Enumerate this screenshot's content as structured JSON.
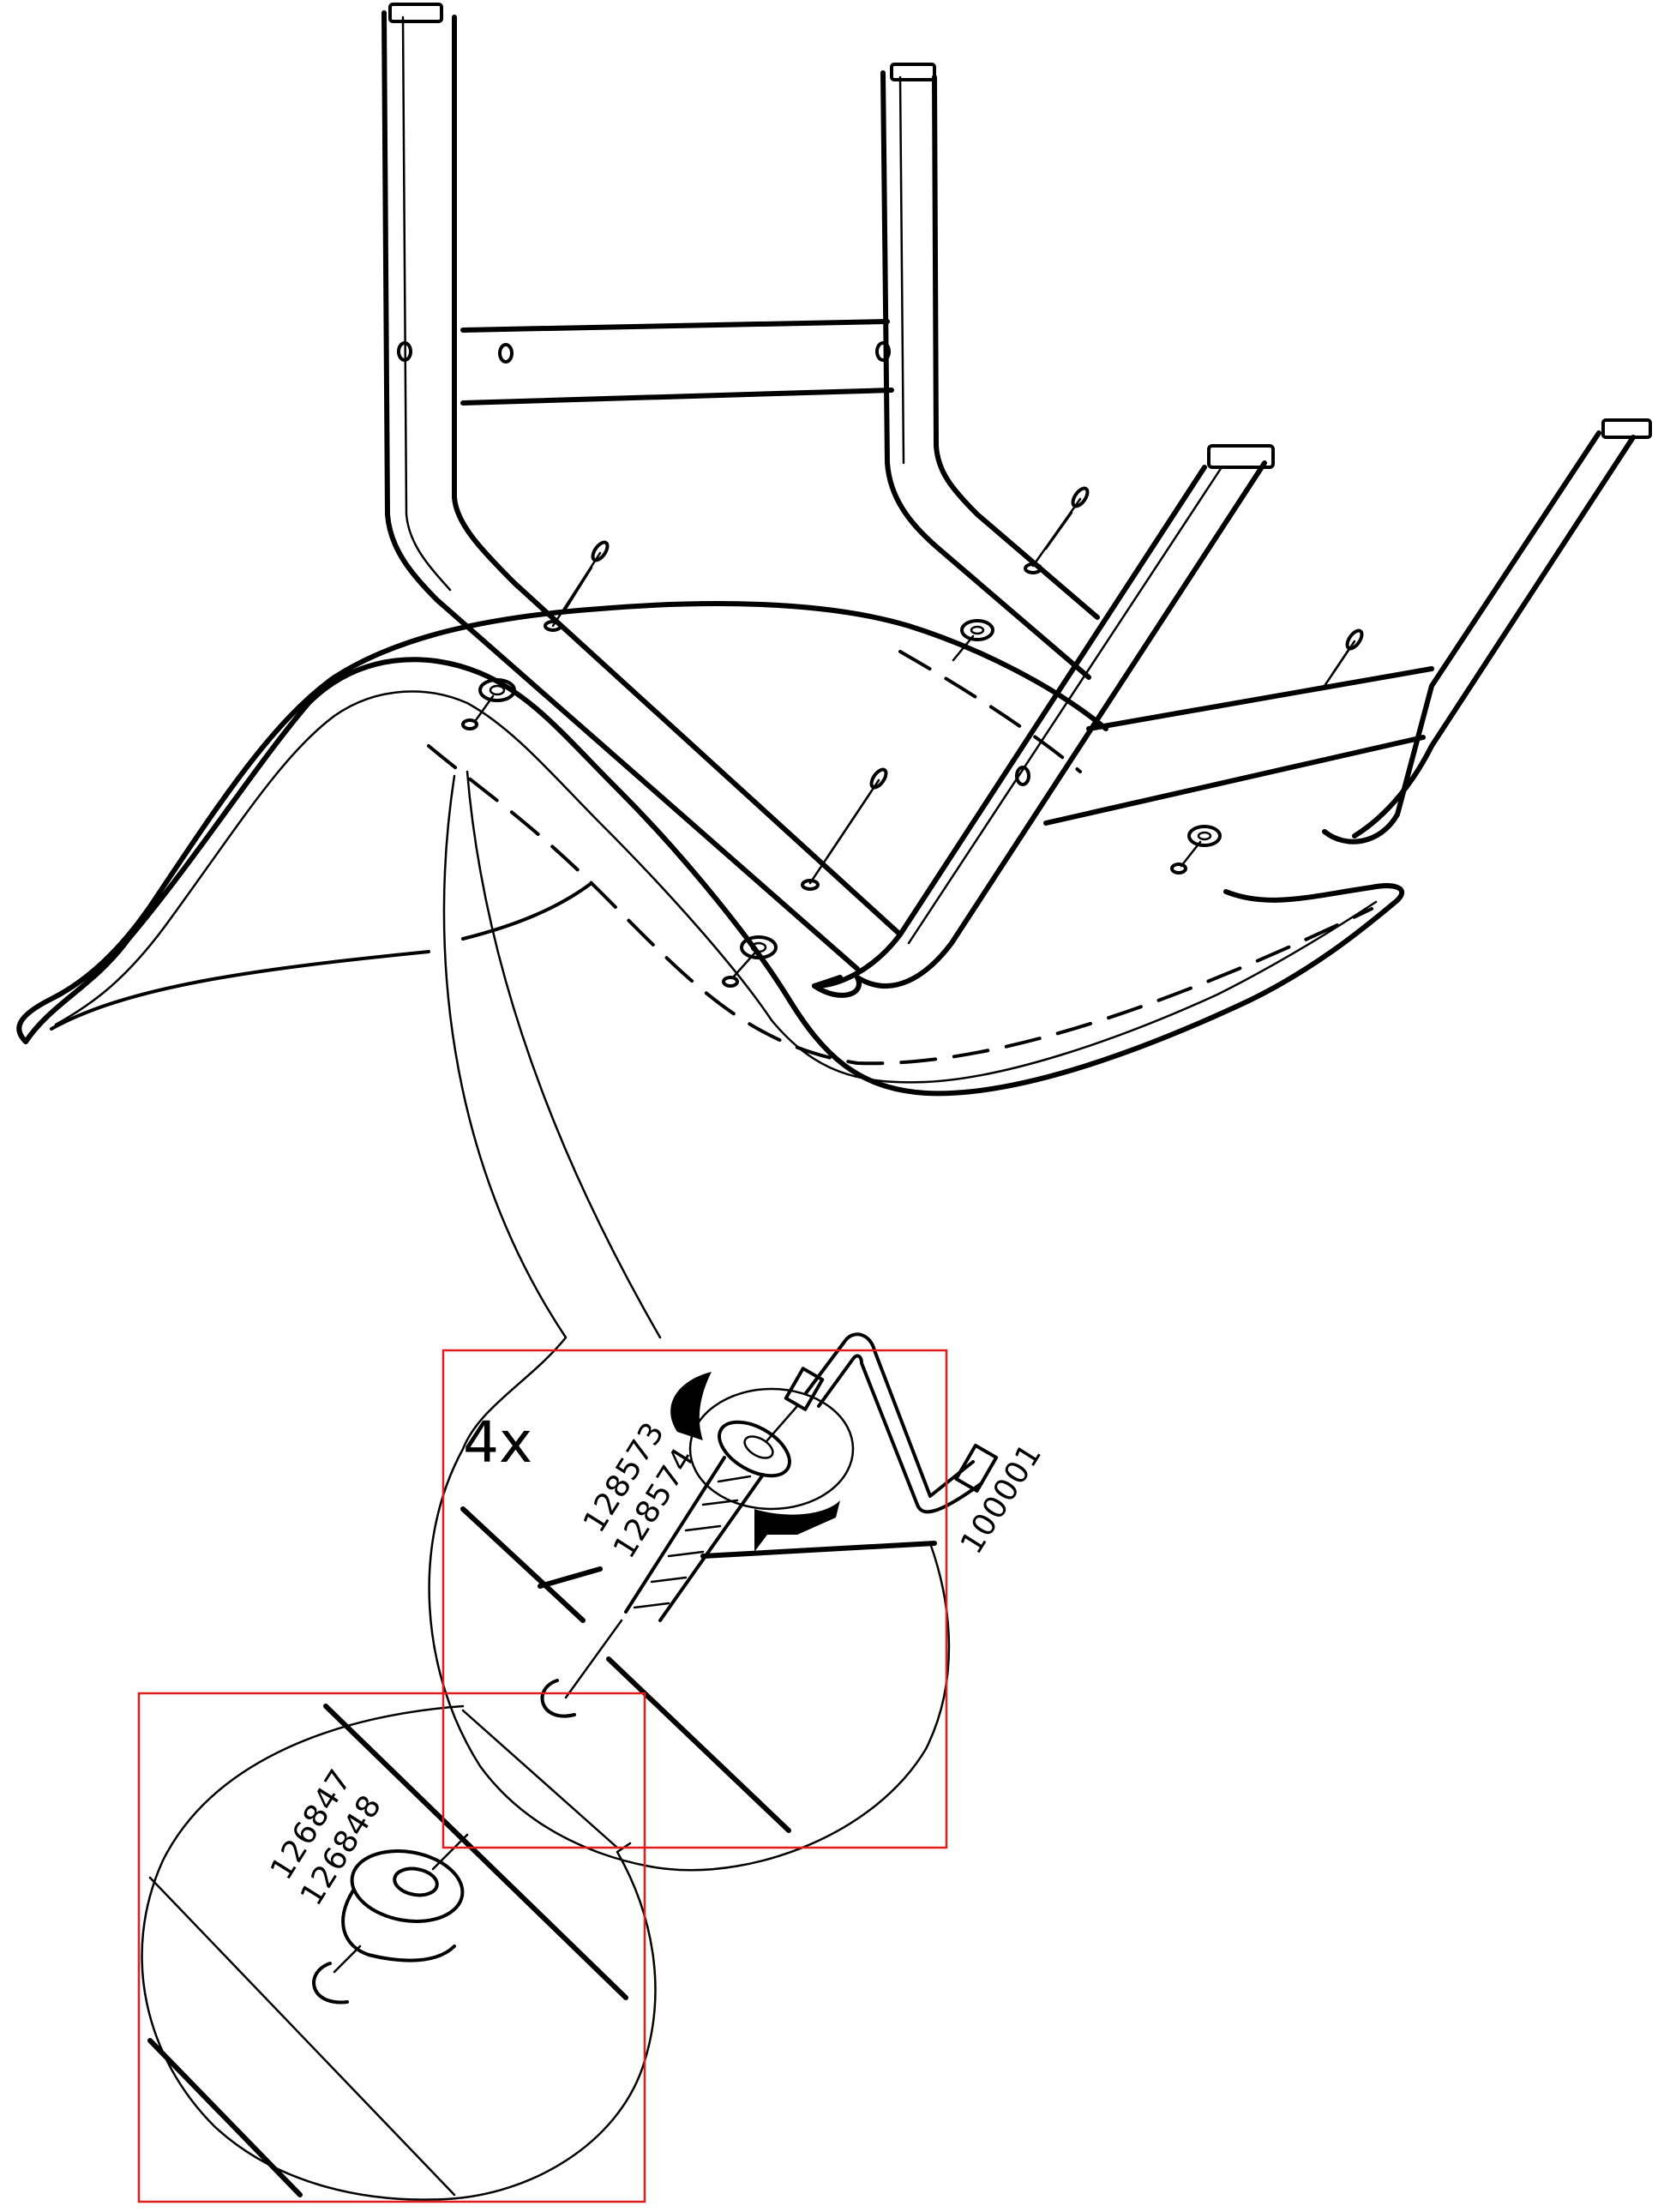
{
  "instruction_step": {
    "quantity_label": "4x",
    "colors": {
      "line": "#000000",
      "highlight_box": "#e21b1b",
      "background": "#ffffff"
    },
    "parts": {
      "bolt": {
        "label_line1": "128573",
        "label_line2": "128574",
        "icon": "bolt-icon"
      },
      "allen_key": {
        "label": "100001",
        "icon": "allen-key-icon"
      },
      "cap_nut": {
        "label_line1": "126847",
        "label_line2": "126848",
        "icon": "cap-nut-icon"
      }
    },
    "rotation_arrows": 2,
    "detail_callouts": 2
  }
}
